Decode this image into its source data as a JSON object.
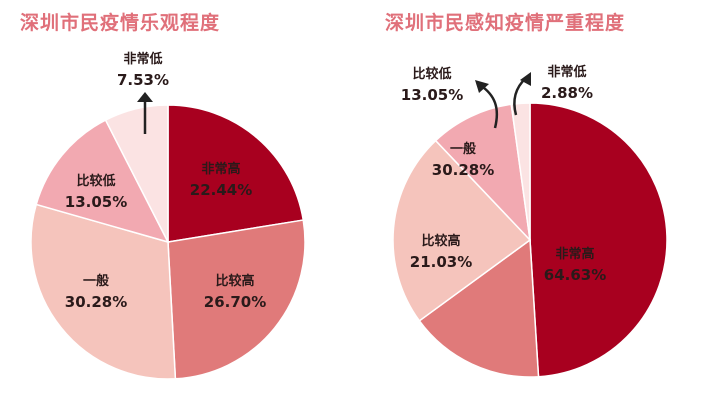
{
  "chart_data": [
    {
      "type": "pie",
      "title": "深圳市民疫情乐观程度",
      "categories": [
        "非常高",
        "比较高",
        "一般",
        "比较低",
        "非常低"
      ],
      "values": [
        22.44,
        26.7,
        30.28,
        13.05,
        7.53
      ],
      "labels": [
        "22.44%",
        "26.70%",
        "30.28%",
        "13.05%",
        "7.53%"
      ],
      "colors": [
        "#a8001f",
        "#e07a7a",
        "#f5c4bc",
        "#f2a9b1",
        "#fbe3e3"
      ],
      "start": "12 o'clock, clockwise"
    },
    {
      "type": "pie",
      "title": "深圳市民感知疫情严重程度",
      "categories": [
        "非常高",
        "比较高",
        "一般",
        "比较低",
        "非常低"
      ],
      "values": [
        64.63,
        21.03,
        30.28,
        13.05,
        2.88
      ],
      "labels": [
        "64.63%",
        "21.03%",
        "30.28%",
        "13.05%",
        "2.88%"
      ],
      "colors": [
        "#a8001f",
        "#e07a7a",
        "#f5c4bc",
        "#f2a9b1",
        "#fbe3e3"
      ],
      "start": "12 o'clock, clockwise"
    }
  ]
}
